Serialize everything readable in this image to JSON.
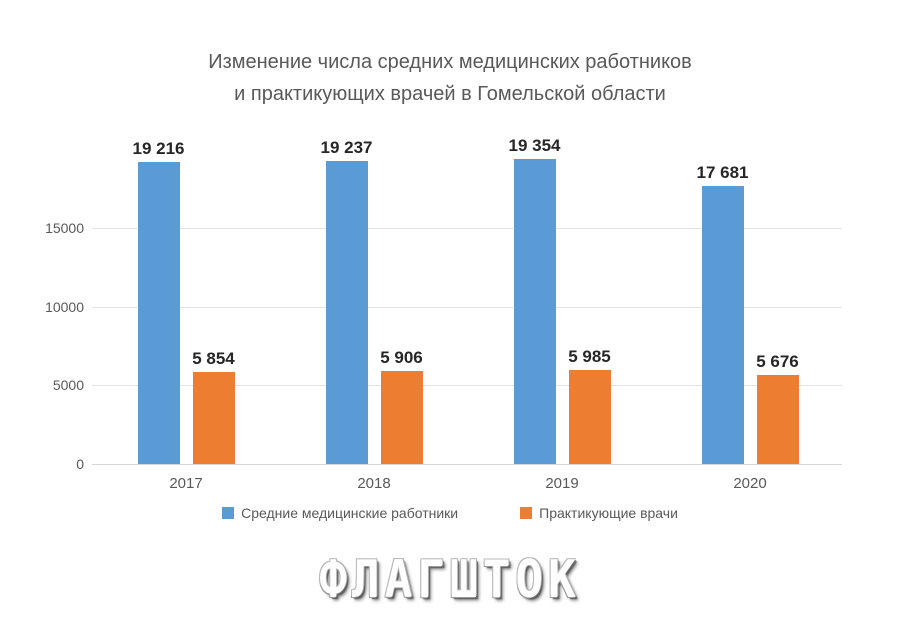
{
  "title": {
    "line1": "Изменение числа средних медицинских работников",
    "line2": "и практикующих врачей в Гомельской области"
  },
  "chart_data": {
    "type": "bar",
    "title": "Изменение числа средних медицинских работников и практикующих врачей в Гомельской области",
    "categories": [
      "2017",
      "2018",
      "2019",
      "2020"
    ],
    "series": [
      {
        "name": "Средние медицинские работники",
        "color": "#5B9BD5",
        "values": [
          19216,
          19237,
          19354,
          17681
        ]
      },
      {
        "name": "Практикующие врачи",
        "color": "#ED7D31",
        "values": [
          5854,
          5906,
          5985,
          5676
        ]
      }
    ],
    "data_labels": [
      "19 216",
      "19 237",
      "19 354",
      "17 681",
      "5 854",
      "5 906",
      "5 985",
      "5 676"
    ],
    "y_ticks": [
      0,
      5000,
      10000,
      15000
    ],
    "ylim": [
      0,
      20000
    ],
    "xlabel": "",
    "ylabel": "",
    "grid": true,
    "legend_position": "bottom"
  },
  "legend": {
    "items": [
      {
        "label": "Средние медицинские работники",
        "color": "#5B9BD5"
      },
      {
        "label": "Практикующие врачи",
        "color": "#ED7D31"
      }
    ]
  },
  "watermark": {
    "text": "ФЛАГШТОК"
  },
  "colors": {
    "series_blue": "#5B9BD5",
    "series_orange": "#ED7D31",
    "title_text": "#595959",
    "axis_text": "#595959",
    "data_label_text": "#262626",
    "gridline": "#E4E4E4",
    "axis_line": "#D6D6D6",
    "background": "#FFFFFF"
  }
}
